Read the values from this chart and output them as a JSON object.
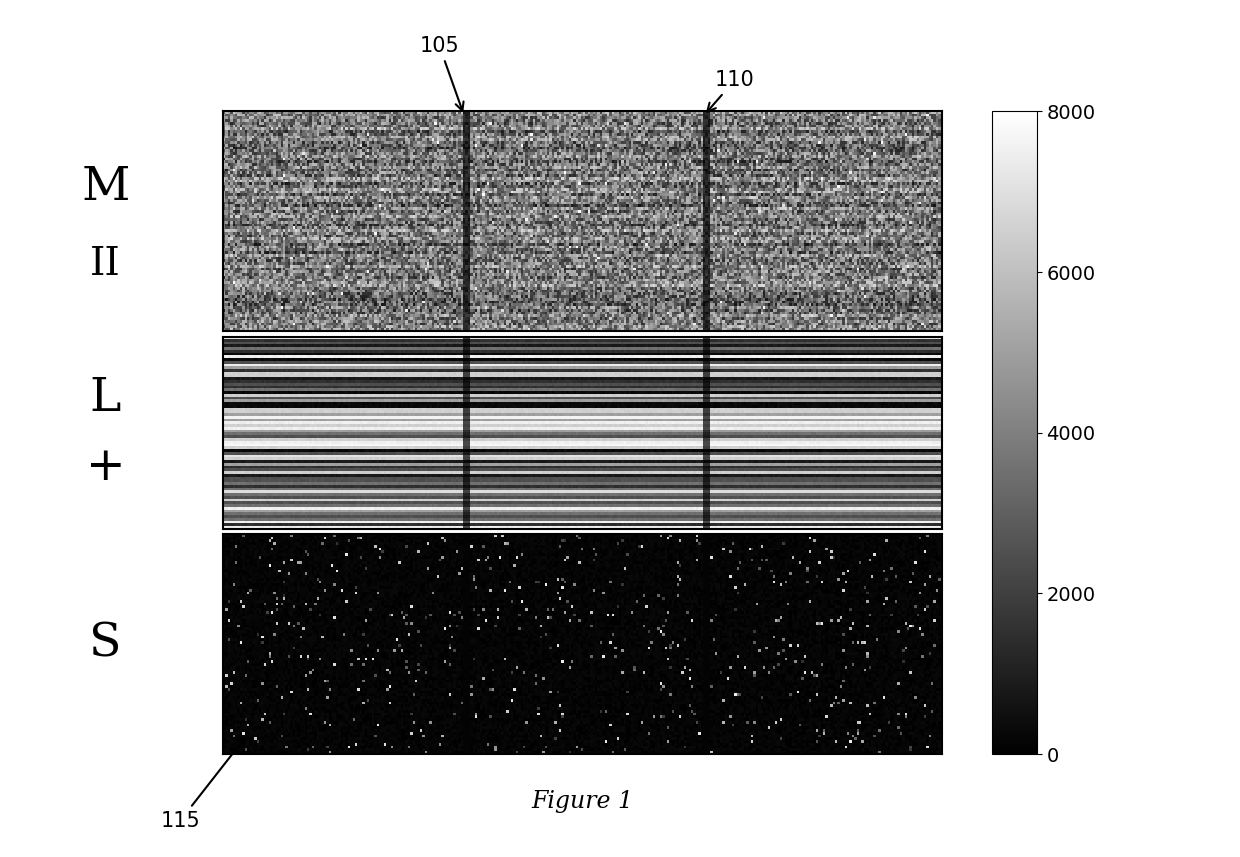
{
  "title": "Figure 1",
  "colorbar_ticks": [
    0,
    2000,
    4000,
    6000,
    8000
  ],
  "colorbar_max": 8000,
  "colorbar_min": 0,
  "bg_color": "#ffffff",
  "rows_M": 80,
  "cols": 300,
  "rows_L": 70,
  "rows_S": 80,
  "seed": 42,
  "annotation_105": "105",
  "annotation_110": "110",
  "annotation_115": "115"
}
